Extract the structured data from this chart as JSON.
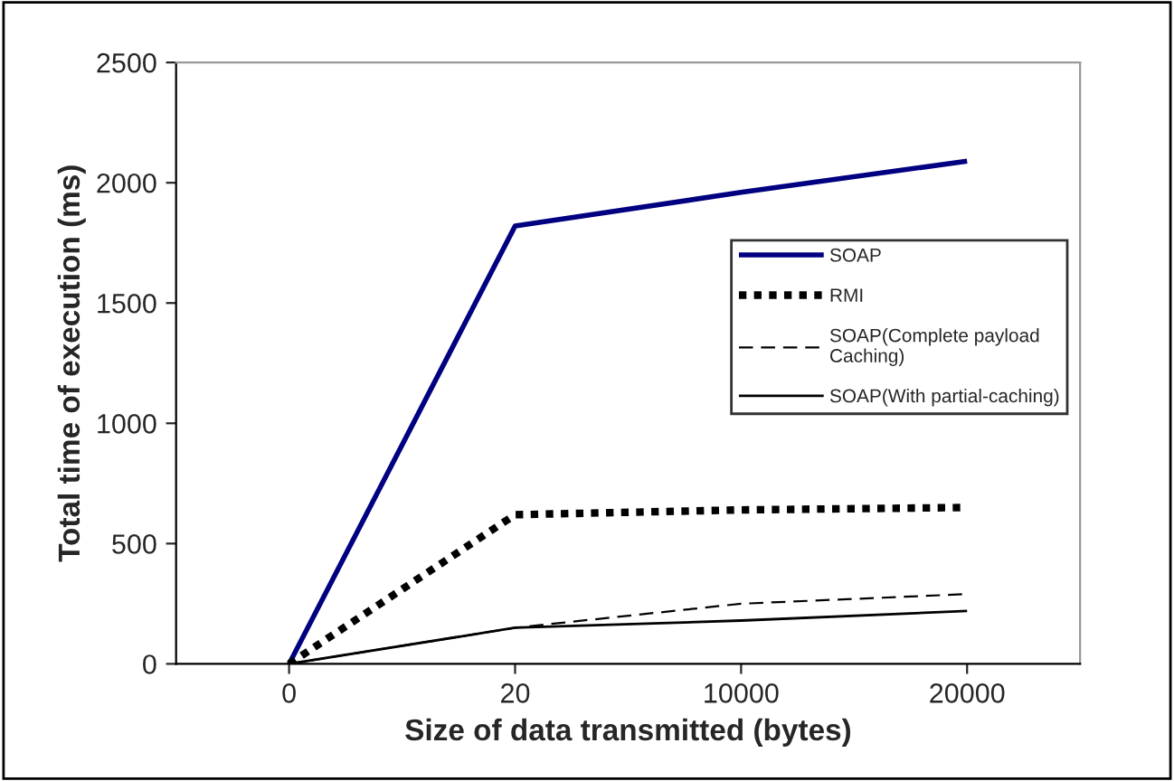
{
  "chart_data": {
    "type": "line",
    "xlabel": "Size of data transmitted (bytes)",
    "ylabel": "Total time of execution (ms)",
    "categories": [
      "0",
      "20",
      "10000",
      "20000"
    ],
    "series": [
      {
        "name": "SOAP",
        "color": "#000080",
        "values": [
          0,
          1820,
          1960,
          2090
        ],
        "line_style": "solid"
      },
      {
        "name": "RMI",
        "color": "#000000",
        "values": [
          0,
          620,
          640,
          650
        ],
        "line_style": "dotted"
      },
      {
        "name": "SOAP(Complete payload\nCaching)",
        "color": "#000000",
        "values": [
          0,
          150,
          250,
          290
        ],
        "line_style": "dashed"
      },
      {
        "name": "SOAP(With partial-caching)",
        "color": "#000000",
        "values": [
          0,
          150,
          180,
          220
        ],
        "line_style": "solid"
      }
    ],
    "ylim": [
      0,
      2500
    ],
    "yticks": [
      0,
      500,
      1000,
      1500,
      2000,
      2500
    ],
    "grid": false,
    "legend": "right",
    "marker": "none"
  }
}
